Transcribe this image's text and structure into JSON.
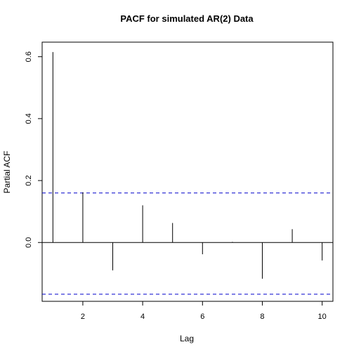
{
  "chart_data": {
    "type": "bar",
    "title": "PACF for simulated AR(2) Data",
    "xlabel": "Lag",
    "ylabel": "Partial ACF",
    "x": [
      1,
      2,
      3,
      4,
      5,
      6,
      7,
      8,
      9,
      10
    ],
    "values": [
      0.615,
      0.162,
      -0.09,
      0.12,
      0.063,
      -0.038,
      0.002,
      -0.117,
      0.043,
      -0.058
    ],
    "xlim": [
      0.64,
      10.36
    ],
    "ylim": [
      -0.19,
      0.647
    ],
    "xticks": [
      2,
      4,
      6,
      8,
      10
    ],
    "yticks": [
      0.0,
      0.2,
      0.4,
      0.6
    ],
    "xtick_labels": [
      "2",
      "4",
      "6",
      "8",
      "10"
    ],
    "ytick_labels": [
      "0.0",
      "0.2",
      "0.4",
      "0.6"
    ],
    "zero_line": 0,
    "confidence_bounds": [
      0.16,
      -0.167
    ],
    "bar_color": "#000000",
    "bound_color": "#0000CC",
    "grid": false,
    "legend": "none"
  }
}
